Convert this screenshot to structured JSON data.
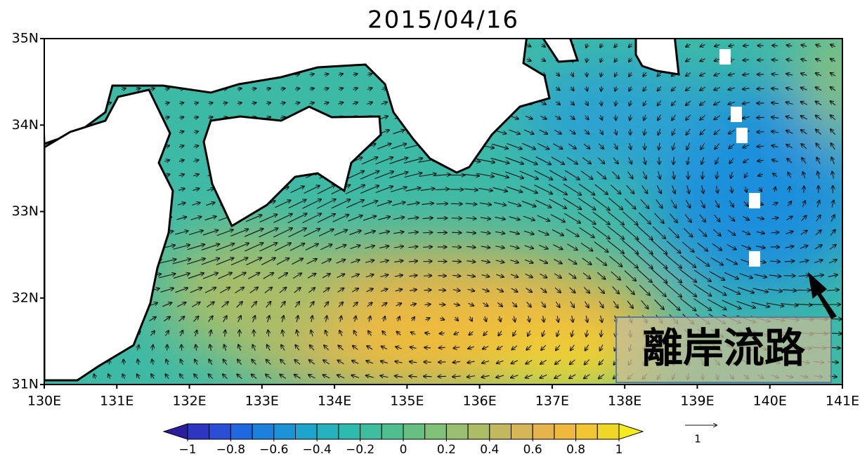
{
  "title": "2015/04/16",
  "latitude_labels": [
    "35N",
    "34N",
    "33N",
    "32N",
    "31N"
  ],
  "longitude_labels": [
    "130E",
    "131E",
    "132E",
    "133E",
    "134E",
    "135E",
    "136E",
    "137E",
    "138E",
    "139E",
    "140E",
    "141E"
  ],
  "colorbar": {
    "colors": [
      "#2b1e9e",
      "#2d36c0",
      "#2a4fd6",
      "#1f68e0",
      "#1e80dd",
      "#1c93d6",
      "#1ea5cb",
      "#25b2bd",
      "#2fbaae",
      "#3ebd9f",
      "#4fbf8f",
      "#67c082",
      "#80c079",
      "#97bf6f",
      "#acbd66",
      "#c2b95f",
      "#d6b556",
      "#e7b34c",
      "#f0b83e",
      "#f2c532",
      "#f0d725",
      "#f5ec1c"
    ],
    "ticks": [
      {
        "value": -1,
        "label": "−1"
      },
      {
        "value": -0.8,
        "label": "−0.8"
      },
      {
        "value": -0.6,
        "label": "−0.6"
      },
      {
        "value": -0.4,
        "label": "−0.4"
      },
      {
        "value": -0.2,
        "label": "−0.2"
      },
      0,
      0.2,
      0.4,
      0.6,
      0.8,
      1
    ]
  },
  "reference_vector": {
    "label": "1"
  },
  "annotation": "離岸流路"
}
